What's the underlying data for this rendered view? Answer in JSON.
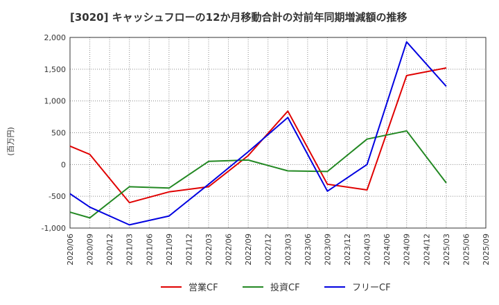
{
  "chart_data": {
    "type": "line",
    "title": "[3020]  キャッシュフローの12か月移動合計の対前年同期増減額の推移",
    "ylabel": "(百万円)",
    "xlabel": "",
    "x_ticks": [
      "2020/06",
      "2020/09",
      "2020/12",
      "2021/03",
      "2021/06",
      "2021/09",
      "2021/12",
      "2022/03",
      "2022/06",
      "2022/09",
      "2022/12",
      "2023/03",
      "2023/06",
      "2023/09",
      "2023/12",
      "2024/03",
      "2024/06",
      "2024/09",
      "2024/12",
      "2025/03",
      "2025/06",
      "2025/09"
    ],
    "y_ticks": [
      "2,000",
      "1,500",
      "1,000",
      "500",
      "0",
      "-500",
      "-1,000"
    ],
    "ylim": [
      -1000,
      2000
    ],
    "grid": true,
    "legend_position": "bottom",
    "series": [
      {
        "name": "営業CF",
        "color": "#e00000",
        "points": [
          {
            "x": "2020/06",
            "y": 290
          },
          {
            "x": "2020/09",
            "y": 160
          },
          {
            "x": "2021/03",
            "y": -600
          },
          {
            "x": "2021/09",
            "y": -430
          },
          {
            "x": "2022/03",
            "y": -350
          },
          {
            "x": "2022/09",
            "y": 140
          },
          {
            "x": "2023/03",
            "y": 840
          },
          {
            "x": "2023/09",
            "y": -310
          },
          {
            "x": "2024/03",
            "y": -400
          },
          {
            "x": "2024/09",
            "y": 1400
          },
          {
            "x": "2025/03",
            "y": 1520
          }
        ]
      },
      {
        "name": "投資CF",
        "color": "#228822",
        "points": [
          {
            "x": "2020/06",
            "y": -750
          },
          {
            "x": "2020/09",
            "y": -840
          },
          {
            "x": "2021/03",
            "y": -350
          },
          {
            "x": "2021/09",
            "y": -370
          },
          {
            "x": "2022/03",
            "y": 50
          },
          {
            "x": "2022/09",
            "y": 70
          },
          {
            "x": "2023/03",
            "y": -100
          },
          {
            "x": "2023/09",
            "y": -110
          },
          {
            "x": "2024/03",
            "y": 400
          },
          {
            "x": "2024/09",
            "y": 530
          },
          {
            "x": "2025/03",
            "y": -290
          }
        ]
      },
      {
        "name": "フリーCF",
        "color": "#0000e0",
        "points": [
          {
            "x": "2020/06",
            "y": -460
          },
          {
            "x": "2020/09",
            "y": -670
          },
          {
            "x": "2021/03",
            "y": -950
          },
          {
            "x": "2021/09",
            "y": -810
          },
          {
            "x": "2022/03",
            "y": -310
          },
          {
            "x": "2022/09",
            "y": 200
          },
          {
            "x": "2023/03",
            "y": 740
          },
          {
            "x": "2023/09",
            "y": -420
          },
          {
            "x": "2024/03",
            "y": 0
          },
          {
            "x": "2024/09",
            "y": 1930
          },
          {
            "x": "2025/03",
            "y": 1230
          }
        ]
      }
    ]
  }
}
